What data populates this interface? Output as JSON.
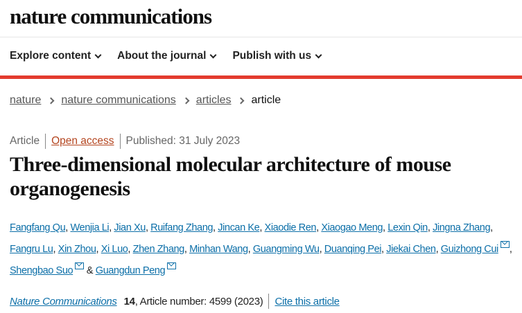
{
  "site": {
    "logo": "nature communications"
  },
  "nav": [
    {
      "label": "Explore content"
    },
    {
      "label": "About the journal"
    },
    {
      "label": "Publish with us"
    }
  ],
  "breadcrumb": [
    "nature",
    "nature communications",
    "articles",
    "article"
  ],
  "meta": {
    "type": "Article",
    "access": "Open access",
    "published": "Published: 31 July 2023"
  },
  "title": "Three-dimensional molecular architecture of mouse organogenesis",
  "authors": [
    "Fangfang Qu",
    "Wenjia Li",
    "Jian Xu",
    "Ruifang Zhang",
    "Jincan Ke",
    "Xiaodie Ren",
    "Xiaogao Meng",
    "Lexin Qin",
    "Jingna Zhang",
    "Fangru Lu",
    "Xin Zhou",
    "Xi Luo",
    "Zhen Zhang",
    "Minhan Wang",
    "Guangming Wu",
    "Duanqing Pei",
    "Jiekai Chen",
    "Guizhong Cui",
    "Shengbao Suo",
    "Guangdun Peng"
  ],
  "authors_amp": "&",
  "citation": {
    "journal": "Nature Communications",
    "volume": "14",
    "article_number": ", Article number: 4599 (2023)",
    "cite_label": "Cite this article"
  },
  "colors": {
    "accent_bar": "#e33b2e",
    "link": "#0c6fa8",
    "open_access": "#b4451f"
  }
}
